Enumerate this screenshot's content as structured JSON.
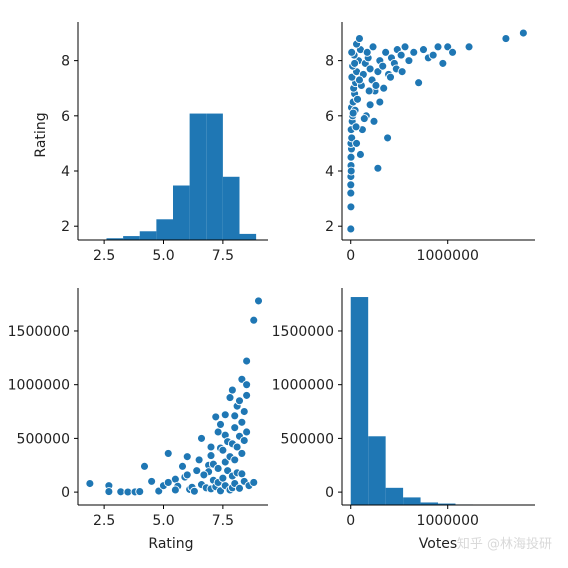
{
  "colors": {
    "mark": "#1f77b4",
    "marker_edge": "#ffffff",
    "axis": "#000000"
  },
  "watermark": "知乎 @林海投研",
  "chart_data": [
    {
      "id": "rating-hist",
      "type": "bar",
      "subtype": "histogram",
      "xlabel": "",
      "ylabel": "Rating",
      "x_ticks": [
        "2.5",
        "5.0",
        "7.5"
      ],
      "y_ticks": [
        "2",
        "4",
        "6",
        "8"
      ],
      "xlim": [
        1.4,
        9.4
      ],
      "ylim": [
        0,
        1000
      ],
      "bins": [
        {
          "x0": 1.9,
          "x1": 2.6,
          "count": 2
        },
        {
          "x0": 2.6,
          "x1": 3.3,
          "count": 8
        },
        {
          "x0": 3.3,
          "x1": 4.0,
          "count": 18
        },
        {
          "x0": 4.0,
          "x1": 4.7,
          "count": 40
        },
        {
          "x0": 4.7,
          "x1": 5.4,
          "count": 95
        },
        {
          "x0": 5.4,
          "x1": 6.1,
          "count": 250
        },
        {
          "x0": 6.1,
          "x1": 6.8,
          "count": 580
        },
        {
          "x0": 6.8,
          "x1": 7.5,
          "count": 580
        },
        {
          "x0": 7.5,
          "x1": 8.2,
          "count": 290
        },
        {
          "x0": 8.2,
          "x1": 8.9,
          "count": 28
        }
      ]
    },
    {
      "id": "votes-vs-rating",
      "type": "scatter",
      "xlabel": "",
      "ylabel": "",
      "x_ticks": [
        "0",
        "1000000"
      ],
      "y_ticks": [
        "2",
        "4",
        "6",
        "8"
      ],
      "xlim": [
        -90000,
        1900000
      ],
      "ylim": [
        1.5,
        9.4
      ],
      "points": [
        [
          800,
          1.9
        ],
        [
          1200,
          2.7
        ],
        [
          900,
          3.2
        ],
        [
          600,
          3.5
        ],
        [
          2000,
          2.7
        ],
        [
          1500,
          3.8
        ],
        [
          3000,
          4.2
        ],
        [
          5000,
          4.0
        ],
        [
          3000,
          4.5
        ],
        [
          8000,
          4.8
        ],
        [
          2000,
          5.0
        ],
        [
          10000,
          5.2
        ],
        [
          5000,
          5.5
        ],
        [
          15000,
          5.8
        ],
        [
          20000,
          6.0
        ],
        [
          8000,
          6.3
        ],
        [
          25000,
          6.5
        ],
        [
          40000,
          6.8
        ],
        [
          30000,
          7.0
        ],
        [
          50000,
          7.2
        ],
        [
          12000,
          7.4
        ],
        [
          60000,
          7.6
        ],
        [
          20000,
          7.8
        ],
        [
          80000,
          8.0
        ],
        [
          35000,
          8.2
        ],
        [
          100000,
          8.4
        ],
        [
          60000,
          8.6
        ],
        [
          90000,
          8.8
        ],
        [
          45000,
          6.2
        ],
        [
          70000,
          6.6
        ],
        [
          110000,
          7.1
        ],
        [
          130000,
          7.5
        ],
        [
          150000,
          7.9
        ],
        [
          180000,
          8.1
        ],
        [
          200000,
          7.7
        ],
        [
          220000,
          7.3
        ],
        [
          250000,
          6.9
        ],
        [
          280000,
          7.6
        ],
        [
          300000,
          8.0
        ],
        [
          330000,
          7.8
        ],
        [
          360000,
          8.3
        ],
        [
          390000,
          7.5
        ],
        [
          420000,
          8.1
        ],
        [
          450000,
          7.9
        ],
        [
          480000,
          8.4
        ],
        [
          520000,
          8.2
        ],
        [
          560000,
          8.5
        ],
        [
          600000,
          8.0
        ],
        [
          650000,
          8.3
        ],
        [
          700000,
          7.2
        ],
        [
          750000,
          8.4
        ],
        [
          800000,
          8.1
        ],
        [
          850000,
          8.2
        ],
        [
          900000,
          8.5
        ],
        [
          950000,
          7.9
        ],
        [
          1000000,
          8.5
        ],
        [
          1050000,
          8.3
        ],
        [
          1220000,
          8.5
        ],
        [
          1600000,
          8.8
        ],
        [
          1780000,
          9.0
        ],
        [
          120000,
          5.5
        ],
        [
          160000,
          6.0
        ],
        [
          200000,
          6.4
        ],
        [
          240000,
          5.8
        ],
        [
          300000,
          6.5
        ],
        [
          380000,
          5.2
        ],
        [
          280000,
          4.1
        ],
        [
          100000,
          4.6
        ],
        [
          60000,
          5.0
        ],
        [
          140000,
          5.9
        ],
        [
          190000,
          6.9
        ],
        [
          260000,
          7.1
        ],
        [
          340000,
          7.0
        ],
        [
          410000,
          7.4
        ],
        [
          470000,
          7.7
        ],
        [
          530000,
          7.6
        ],
        [
          170000,
          8.3
        ],
        [
          230000,
          8.5
        ],
        [
          90000,
          7.3
        ],
        [
          40000,
          7.9
        ],
        [
          10000,
          8.3
        ],
        [
          25000,
          6.1
        ],
        [
          55000,
          5.6
        ]
      ]
    },
    {
      "id": "rating-vs-votes",
      "type": "scatter",
      "xlabel": "Rating",
      "ylabel": "",
      "x_ticks": [
        "2.5",
        "5.0",
        "7.5"
      ],
      "y_ticks": [
        "0",
        "500000",
        "1000000",
        "1500000"
      ],
      "xlim": [
        1.4,
        9.4
      ],
      "ylim": [
        -120000,
        1900000
      ],
      "points": [
        [
          1.9,
          80000
        ],
        [
          2.7,
          60000
        ],
        [
          2.7,
          5000
        ],
        [
          3.2,
          3000
        ],
        [
          3.5,
          1000
        ],
        [
          3.8,
          2000
        ],
        [
          4.0,
          5000
        ],
        [
          4.2,
          240000
        ],
        [
          4.5,
          100000
        ],
        [
          4.8,
          10000
        ],
        [
          5.0,
          60000
        ],
        [
          5.2,
          360000
        ],
        [
          5.5,
          120000
        ],
        [
          5.6,
          55000
        ],
        [
          5.8,
          240000
        ],
        [
          5.9,
          140000
        ],
        [
          6.0,
          160000
        ],
        [
          6.1,
          25000
        ],
        [
          6.2,
          45000
        ],
        [
          6.3,
          8000
        ],
        [
          6.4,
          200000
        ],
        [
          6.5,
          300000
        ],
        [
          6.6,
          70000
        ],
        [
          6.8,
          40000
        ],
        [
          6.9,
          250000
        ],
        [
          6.9,
          190000
        ],
        [
          7.0,
          30000
        ],
        [
          7.0,
          340000
        ],
        [
          7.1,
          110000
        ],
        [
          7.1,
          260000
        ],
        [
          7.2,
          700000
        ],
        [
          7.2,
          50000
        ],
        [
          7.3,
          220000
        ],
        [
          7.3,
          90000
        ],
        [
          7.4,
          410000
        ],
        [
          7.4,
          12000
        ],
        [
          7.5,
          130000
        ],
        [
          7.5,
          390000
        ],
        [
          7.6,
          60000
        ],
        [
          7.6,
          280000
        ],
        [
          7.6,
          530000
        ],
        [
          7.7,
          200000
        ],
        [
          7.7,
          470000
        ],
        [
          7.8,
          20000
        ],
        [
          7.8,
          330000
        ],
        [
          7.9,
          150000
        ],
        [
          7.9,
          450000
        ],
        [
          7.9,
          950000
        ],
        [
          7.9,
          40000
        ],
        [
          8.0,
          80000
        ],
        [
          8.0,
          300000
        ],
        [
          8.0,
          600000
        ],
        [
          8.1,
          180000
        ],
        [
          8.1,
          420000
        ],
        [
          8.1,
          800000
        ],
        [
          8.2,
          35000
        ],
        [
          8.2,
          520000
        ],
        [
          8.2,
          850000
        ],
        [
          8.3,
          650000
        ],
        [
          8.3,
          360000
        ],
        [
          8.3,
          170000
        ],
        [
          8.3,
          1050000
        ],
        [
          8.4,
          100000
        ],
        [
          8.4,
          480000
        ],
        [
          8.4,
          750000
        ],
        [
          8.5,
          560000
        ],
        [
          8.5,
          900000
        ],
        [
          8.5,
          1220000
        ],
        [
          8.5,
          1000000
        ],
        [
          8.6,
          60000
        ],
        [
          8.8,
          1600000
        ],
        [
          8.8,
          90000
        ],
        [
          9.0,
          1780000
        ],
        [
          6.7,
          160000
        ],
        [
          7.0,
          420000
        ],
        [
          7.3,
          560000
        ],
        [
          7.6,
          720000
        ],
        [
          7.8,
          880000
        ],
        [
          6.0,
          330000
        ],
        [
          5.5,
          20000
        ],
        [
          6.6,
          500000
        ],
        [
          7.4,
          630000
        ],
        [
          8.0,
          710000
        ],
        [
          5.2,
          90000
        ]
      ]
    },
    {
      "id": "votes-hist",
      "type": "bar",
      "subtype": "histogram",
      "xlabel": "Votes",
      "ylabel": "",
      "x_ticks": [
        "0",
        "1000000"
      ],
      "y_ticks": [
        "0",
        "500000",
        "1000000",
        "1500000"
      ],
      "xlim": [
        -90000,
        1900000
      ],
      "ylim": [
        0,
        1200
      ],
      "bins": [
        {
          "x0": 0,
          "x1": 180000,
          "count": 1150
        },
        {
          "x0": 180000,
          "x1": 360000,
          "count": 380
        },
        {
          "x0": 360000,
          "x1": 540000,
          "count": 95
        },
        {
          "x0": 540000,
          "x1": 720000,
          "count": 42
        },
        {
          "x0": 720000,
          "x1": 900000,
          "count": 14
        },
        {
          "x0": 900000,
          "x1": 1080000,
          "count": 8
        },
        {
          "x0": 1080000,
          "x1": 1260000,
          "count": 3
        },
        {
          "x0": 1260000,
          "x1": 1440000,
          "count": 1
        },
        {
          "x0": 1440000,
          "x1": 1620000,
          "count": 1
        },
        {
          "x0": 1620000,
          "x1": 1800000,
          "count": 1
        }
      ]
    }
  ]
}
